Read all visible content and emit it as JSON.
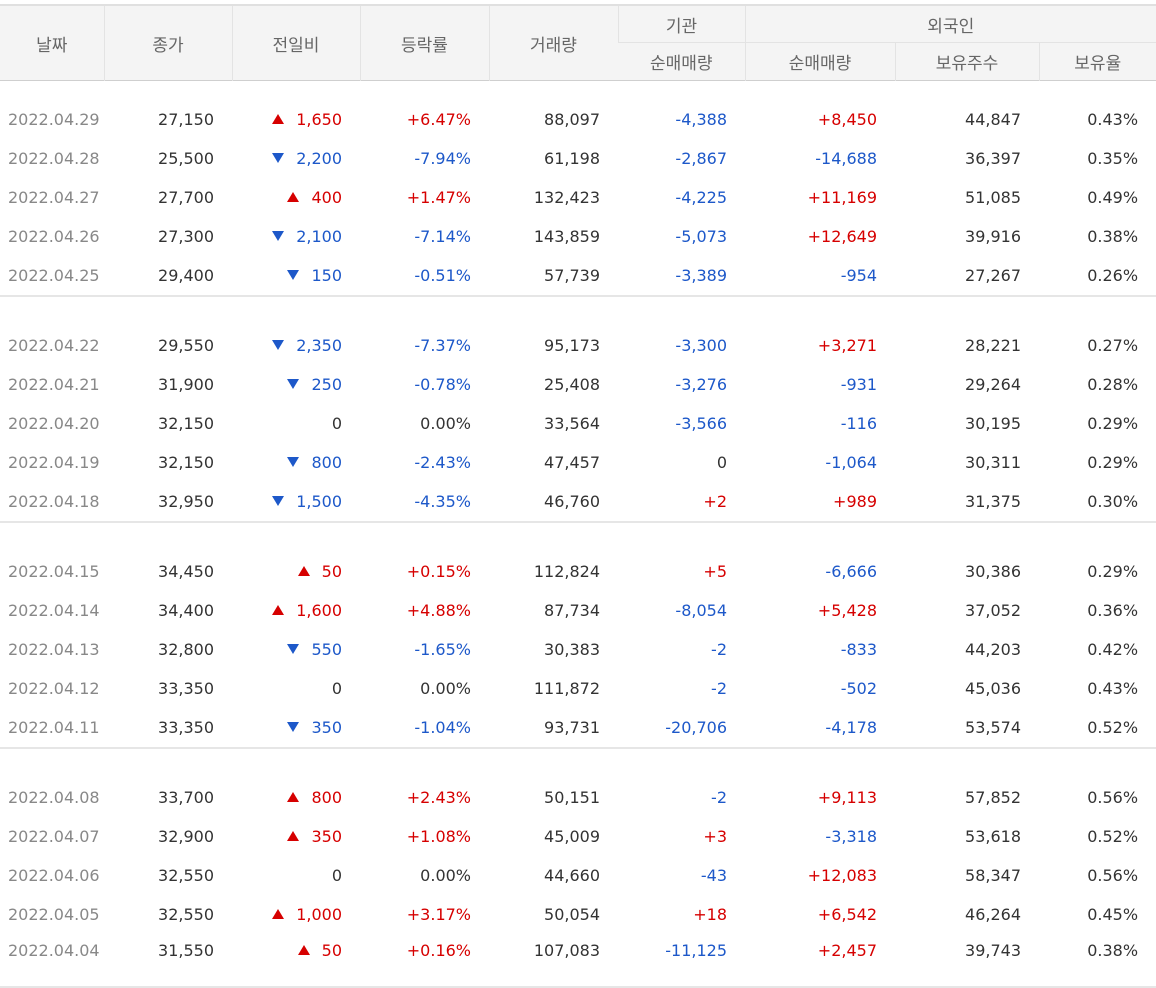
{
  "colors": {
    "up": "#d60000",
    "down": "#1d58c9",
    "header_bg": "#f4f4f4",
    "date_text": "#888888"
  },
  "header": {
    "date": "날짜",
    "close": "종가",
    "change": "전일비",
    "rate": "등락률",
    "volume": "거래량",
    "institution": "기관",
    "foreign": "외국인",
    "inst_net": "순매매량",
    "foreign_net": "순매매량",
    "holdings": "보유주수",
    "holding_ratio": "보유율"
  },
  "groups": [
    {
      "rows": [
        {
          "date": "2022.04.29",
          "close": "27,150",
          "change": "1,650",
          "change_dir": "up",
          "rate": "+6.47%",
          "volume": "88,097",
          "inst": "-4,388",
          "foreign": "+8,450",
          "holdings": "44,847",
          "ratio": "0.43%"
        },
        {
          "date": "2022.04.28",
          "close": "25,500",
          "change": "2,200",
          "change_dir": "down",
          "rate": "-7.94%",
          "volume": "61,198",
          "inst": "-2,867",
          "foreign": "-14,688",
          "holdings": "36,397",
          "ratio": "0.35%"
        },
        {
          "date": "2022.04.27",
          "close": "27,700",
          "change": "400",
          "change_dir": "up",
          "rate": "+1.47%",
          "volume": "132,423",
          "inst": "-4,225",
          "foreign": "+11,169",
          "holdings": "51,085",
          "ratio": "0.49%"
        },
        {
          "date": "2022.04.26",
          "close": "27,300",
          "change": "2,100",
          "change_dir": "down",
          "rate": "-7.14%",
          "volume": "143,859",
          "inst": "-5,073",
          "foreign": "+12,649",
          "holdings": "39,916",
          "ratio": "0.38%"
        },
        {
          "date": "2022.04.25",
          "close": "29,400",
          "change": "150",
          "change_dir": "down",
          "rate": "-0.51%",
          "volume": "57,739",
          "inst": "-3,389",
          "foreign": "-954",
          "holdings": "27,267",
          "ratio": "0.26%"
        }
      ]
    },
    {
      "rows": [
        {
          "date": "2022.04.22",
          "close": "29,550",
          "change": "2,350",
          "change_dir": "down",
          "rate": "-7.37%",
          "volume": "95,173",
          "inst": "-3,300",
          "foreign": "+3,271",
          "holdings": "28,221",
          "ratio": "0.27%"
        },
        {
          "date": "2022.04.21",
          "close": "31,900",
          "change": "250",
          "change_dir": "down",
          "rate": "-0.78%",
          "volume": "25,408",
          "inst": "-3,276",
          "foreign": "-931",
          "holdings": "29,264",
          "ratio": "0.28%"
        },
        {
          "date": "2022.04.20",
          "close": "32,150",
          "change": "0",
          "change_dir": "none",
          "rate": "0.00%",
          "volume": "33,564",
          "inst": "-3,566",
          "foreign": "-116",
          "holdings": "30,195",
          "ratio": "0.29%"
        },
        {
          "date": "2022.04.19",
          "close": "32,150",
          "change": "800",
          "change_dir": "down",
          "rate": "-2.43%",
          "volume": "47,457",
          "inst": "0",
          "foreign": "-1,064",
          "holdings": "30,311",
          "ratio": "0.29%"
        },
        {
          "date": "2022.04.18",
          "close": "32,950",
          "change": "1,500",
          "change_dir": "down",
          "rate": "-4.35%",
          "volume": "46,760",
          "inst": "+2",
          "foreign": "+989",
          "holdings": "31,375",
          "ratio": "0.30%"
        }
      ]
    },
    {
      "rows": [
        {
          "date": "2022.04.15",
          "close": "34,450",
          "change": "50",
          "change_dir": "up",
          "rate": "+0.15%",
          "volume": "112,824",
          "inst": "+5",
          "foreign": "-6,666",
          "holdings": "30,386",
          "ratio": "0.29%"
        },
        {
          "date": "2022.04.14",
          "close": "34,400",
          "change": "1,600",
          "change_dir": "up",
          "rate": "+4.88%",
          "volume": "87,734",
          "inst": "-8,054",
          "foreign": "+5,428",
          "holdings": "37,052",
          "ratio": "0.36%"
        },
        {
          "date": "2022.04.13",
          "close": "32,800",
          "change": "550",
          "change_dir": "down",
          "rate": "-1.65%",
          "volume": "30,383",
          "inst": "-2",
          "foreign": "-833",
          "holdings": "44,203",
          "ratio": "0.42%"
        },
        {
          "date": "2022.04.12",
          "close": "33,350",
          "change": "0",
          "change_dir": "none",
          "rate": "0.00%",
          "volume": "111,872",
          "inst": "-2",
          "foreign": "-502",
          "holdings": "45,036",
          "ratio": "0.43%"
        },
        {
          "date": "2022.04.11",
          "close": "33,350",
          "change": "350",
          "change_dir": "down",
          "rate": "-1.04%",
          "volume": "93,731",
          "inst": "-20,706",
          "foreign": "-4,178",
          "holdings": "53,574",
          "ratio": "0.52%"
        }
      ]
    },
    {
      "rows": [
        {
          "date": "2022.04.08",
          "close": "33,700",
          "change": "800",
          "change_dir": "up",
          "rate": "+2.43%",
          "volume": "50,151",
          "inst": "-2",
          "foreign": "+9,113",
          "holdings": "57,852",
          "ratio": "0.56%"
        },
        {
          "date": "2022.04.07",
          "close": "32,900",
          "change": "350",
          "change_dir": "up",
          "rate": "+1.08%",
          "volume": "45,009",
          "inst": "+3",
          "foreign": "-3,318",
          "holdings": "53,618",
          "ratio": "0.52%"
        },
        {
          "date": "2022.04.06",
          "close": "32,550",
          "change": "0",
          "change_dir": "none",
          "rate": "0.00%",
          "volume": "44,660",
          "inst": "-43",
          "foreign": "+12,083",
          "holdings": "58,347",
          "ratio": "0.56%"
        },
        {
          "date": "2022.04.05",
          "close": "32,550",
          "change": "1,000",
          "change_dir": "up",
          "rate": "+3.17%",
          "volume": "50,054",
          "inst": "+18",
          "foreign": "+6,542",
          "holdings": "46,264",
          "ratio": "0.45%"
        },
        {
          "date": "2022.04.04",
          "close": "31,550",
          "change": "50",
          "change_dir": "up",
          "rate": "+0.16%",
          "volume": "107,083",
          "inst": "-11,125",
          "foreign": "+2,457",
          "holdings": "39,743",
          "ratio": "0.38%"
        }
      ]
    }
  ]
}
